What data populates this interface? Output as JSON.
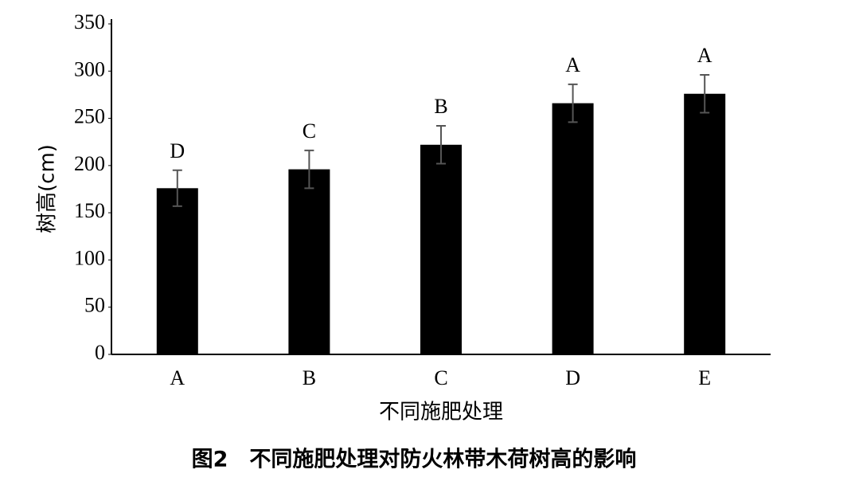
{
  "chart_data": {
    "type": "bar",
    "caption": "图2　不同施肥处理对防火林带木荷树高的影响",
    "xlabel": "不同施肥处理",
    "ylabel": "树高(cm)",
    "categories": [
      "A",
      "B",
      "C",
      "D",
      "E"
    ],
    "values": [
      176,
      196,
      222,
      266,
      276
    ],
    "errors": [
      19,
      20,
      20,
      20,
      20
    ],
    "significance_labels": [
      "D",
      "C",
      "B",
      "A",
      "A"
    ],
    "color": "#000000",
    "ylim": [
      0,
      350
    ],
    "yticks": [
      0,
      50,
      100,
      150,
      200,
      250,
      300,
      350
    ],
    "grid": false
  }
}
